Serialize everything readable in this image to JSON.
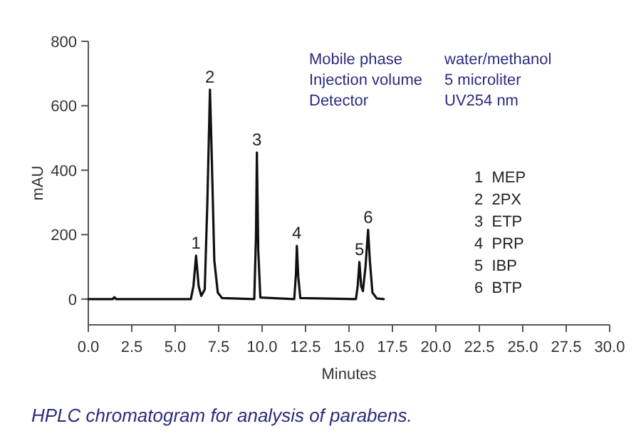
{
  "chart_data": {
    "type": "line",
    "xlabel": "Minutes",
    "ylabel": "mAU",
    "x": [
      0,
      1.4,
      1.5,
      1.6,
      5.9,
      6.05,
      6.2,
      6.35,
      6.5,
      6.7,
      6.85,
      7.0,
      7.1,
      7.25,
      7.45,
      7.7,
      9.55,
      9.65,
      9.7,
      9.78,
      9.9,
      11.85,
      11.95,
      12.0,
      12.08,
      12.2,
      15.4,
      15.5,
      15.6,
      15.7,
      15.8,
      15.95,
      16.1,
      16.2,
      16.35,
      16.6,
      17.0
    ],
    "series": [
      {
        "color": "#111111",
        "values": [
          0,
          0,
          6,
          0,
          0,
          40,
          135,
          40,
          10,
          30,
          300,
          650,
          450,
          120,
          20,
          3,
          0,
          200,
          455,
          150,
          5,
          0,
          80,
          165,
          70,
          3,
          0,
          40,
          115,
          40,
          25,
          100,
          215,
          120,
          20,
          2,
          0
        ]
      }
    ],
    "xlim": [
      0,
      30
    ],
    "xticks": [
      {
        "value": 0,
        "label": "0.0"
      },
      2.5,
      {
        "value": 5,
        "label": "5.0"
      },
      7.5,
      {
        "value": 10,
        "label": "10.0"
      },
      12.5,
      {
        "value": 15,
        "label": "15.0"
      },
      17.5,
      {
        "value": 20,
        "label": "20.0"
      },
      22.5,
      {
        "value": 25,
        "label": "25.0"
      },
      27.5,
      {
        "value": 30,
        "label": "30.0"
      }
    ],
    "ylim": [
      -80,
      800
    ],
    "yticks": [
      0,
      200,
      400,
      600,
      800
    ],
    "grid": false,
    "marker": "none",
    "line_style": "solid",
    "annotations": [
      {
        "text": "1",
        "x": 6.2,
        "y": 135
      },
      {
        "text": "2",
        "x": 7.0,
        "y": 650
      },
      {
        "text": "3",
        "x": 9.7,
        "y": 455
      },
      {
        "text": "4",
        "x": 12.0,
        "y": 165
      },
      {
        "text": "5",
        "x": 15.6,
        "y": 115
      },
      {
        "text": "6",
        "x": 16.1,
        "y": 215
      },
      "Mobile phase",
      "water/methanol",
      "Injection volume",
      "5 microliter",
      "Detector",
      "UV254 nm",
      "1  MEP",
      "2  2PX",
      "3  ETP",
      "4  PRP",
      "5  IBP",
      "6  BTP",
      "HPLC chromatogram for analysis of parabens."
    ]
  }
}
